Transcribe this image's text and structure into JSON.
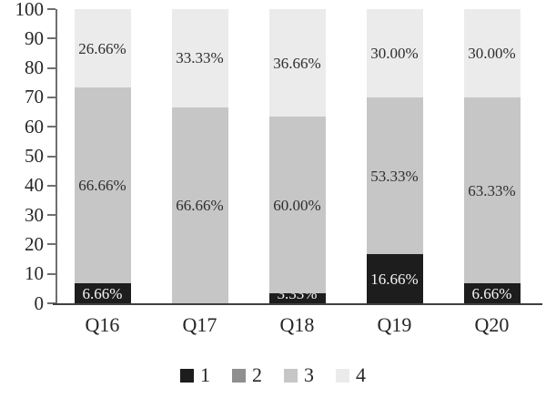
{
  "chart_data": {
    "type": "bar",
    "stacked": true,
    "title": "",
    "xlabel": "",
    "ylabel": "",
    "ylim": [
      0,
      100
    ],
    "yticks": [
      0,
      10,
      20,
      30,
      40,
      50,
      60,
      70,
      80,
      90,
      100
    ],
    "grid": false,
    "legend_position": "bottom",
    "categories": [
      "Q16",
      "Q17",
      "Q18",
      "Q19",
      "Q20"
    ],
    "series": [
      {
        "name": "1",
        "color": "#1d1d1d",
        "label_color": "#f5f5f5",
        "values": [
          6.66,
          0,
          3.33,
          16.66,
          6.66
        ],
        "labels": [
          "6.66%",
          "",
          "3.33%",
          "16.66%",
          "6.66%"
        ]
      },
      {
        "name": "2",
        "color": "#8f8f8f",
        "label_color": "#2e2e2e",
        "values": [
          0,
          0,
          0,
          0,
          0
        ],
        "labels": [
          "",
          "",
          "",
          "",
          ""
        ]
      },
      {
        "name": "3",
        "color": "#c6c6c6",
        "label_color": "#2e2e2e",
        "values": [
          66.66,
          66.66,
          60.0,
          53.33,
          63.33
        ],
        "labels": [
          "66.66%",
          "66.66%",
          "60.00%",
          "53.33%",
          "63.33%"
        ]
      },
      {
        "name": "4",
        "color": "#ebebeb",
        "label_color": "#2e2e2e",
        "values": [
          26.66,
          33.33,
          36.66,
          30.0,
          30.0
        ],
        "labels": [
          "26.66%",
          "33.33%",
          "36.66%",
          "30.00%",
          "30.00%"
        ]
      }
    ]
  }
}
